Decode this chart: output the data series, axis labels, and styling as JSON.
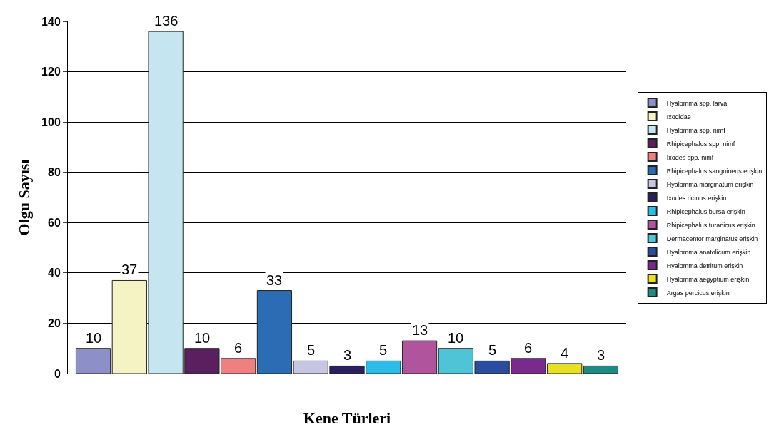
{
  "chart_data": {
    "type": "bar",
    "xlabel": "Kene Türleri",
    "ylabel": "Olgu Sayısı",
    "categories": [
      null,
      null,
      null,
      null,
      null,
      null,
      null,
      null,
      null,
      null,
      null,
      null,
      null,
      null,
      null
    ],
    "series": [
      {
        "name": "Hyalomma spp. larva",
        "color": "#8d8fc8",
        "values": [
          10,
          null,
          null,
          null,
          null,
          null,
          null,
          null,
          null,
          null,
          null,
          null,
          null,
          null,
          null
        ]
      },
      {
        "name": "Ixodidae",
        "color": "#f5f3c4",
        "values": [
          null,
          37,
          null,
          null,
          null,
          null,
          null,
          null,
          null,
          null,
          null,
          null,
          null,
          null,
          null
        ]
      },
      {
        "name": "Hyalomma spp. nimf",
        "color": "#c5e6f0",
        "values": [
          null,
          null,
          136,
          null,
          null,
          null,
          null,
          null,
          null,
          null,
          null,
          null,
          null,
          null,
          null
        ]
      },
      {
        "name": "Rhipicephalus spp. nimf",
        "color": "#5a1f5e",
        "values": [
          null,
          null,
          null,
          10,
          null,
          null,
          null,
          null,
          null,
          null,
          null,
          null,
          null,
          null,
          null
        ]
      },
      {
        "name": "Ixodes spp. nimf",
        "color": "#f08080",
        "values": [
          null,
          null,
          null,
          null,
          6,
          null,
          null,
          null,
          null,
          null,
          null,
          null,
          null,
          null,
          null
        ]
      },
      {
        "name": "Rhipicephalus sanguineus erişkin",
        "color": "#2a6db5",
        "values": [
          null,
          null,
          null,
          null,
          null,
          33,
          null,
          null,
          null,
          null,
          null,
          null,
          null,
          null,
          null
        ]
      },
      {
        "name": "Hyalomma marginatum erişkin",
        "color": "#c6c6e3",
        "values": [
          null,
          null,
          null,
          null,
          null,
          null,
          5,
          null,
          null,
          null,
          null,
          null,
          null,
          null,
          null
        ]
      },
      {
        "name": "Ixodes ricinus erişkin",
        "color": "#2a2060",
        "values": [
          null,
          null,
          null,
          null,
          null,
          null,
          null,
          3,
          null,
          null,
          null,
          null,
          null,
          null,
          null
        ]
      },
      {
        "name": "Rhipicephalus bursa erişkin",
        "color": "#2bbde8",
        "values": [
          null,
          null,
          null,
          null,
          null,
          null,
          null,
          null,
          5,
          null,
          null,
          null,
          null,
          null,
          null
        ]
      },
      {
        "name": "Rhipicephalus turanicus erişkin",
        "color": "#b0549e",
        "values": [
          null,
          null,
          null,
          null,
          null,
          null,
          null,
          null,
          null,
          13,
          null,
          null,
          null,
          null,
          null
        ]
      },
      {
        "name": "Dermacentor marginatus erişkin",
        "color": "#4ec4d6",
        "values": [
          null,
          null,
          null,
          null,
          null,
          null,
          null,
          null,
          null,
          null,
          10,
          null,
          null,
          null,
          null
        ]
      },
      {
        "name": "Hyalomma anatolicum erişkin",
        "color": "#2c4ca0",
        "values": [
          null,
          null,
          null,
          null,
          null,
          null,
          null,
          null,
          null,
          null,
          null,
          5,
          null,
          null,
          null
        ]
      },
      {
        "name": "Hyalomma detritum erişkin",
        "color": "#7a2a8c",
        "values": [
          null,
          null,
          null,
          null,
          null,
          null,
          null,
          null,
          null,
          null,
          null,
          null,
          6,
          null,
          null
        ]
      },
      {
        "name": "Hyalomma aegyptium erişkin",
        "color": "#e8e020",
        "values": [
          null,
          null,
          null,
          null,
          null,
          null,
          null,
          null,
          null,
          null,
          null,
          null,
          null,
          4,
          null
        ]
      },
      {
        "name": "Argas percicus erişkin",
        "color": "#1e8a82",
        "values": [
          null,
          null,
          null,
          null,
          null,
          null,
          null,
          null,
          null,
          null,
          null,
          null,
          null,
          null,
          3
        ]
      }
    ],
    "ylim": [
      0,
      140
    ],
    "yticks": [
      0,
      20,
      40,
      60,
      80,
      100,
      120,
      140
    ],
    "grid": "y",
    "legend": "right",
    "data_labels": true
  }
}
